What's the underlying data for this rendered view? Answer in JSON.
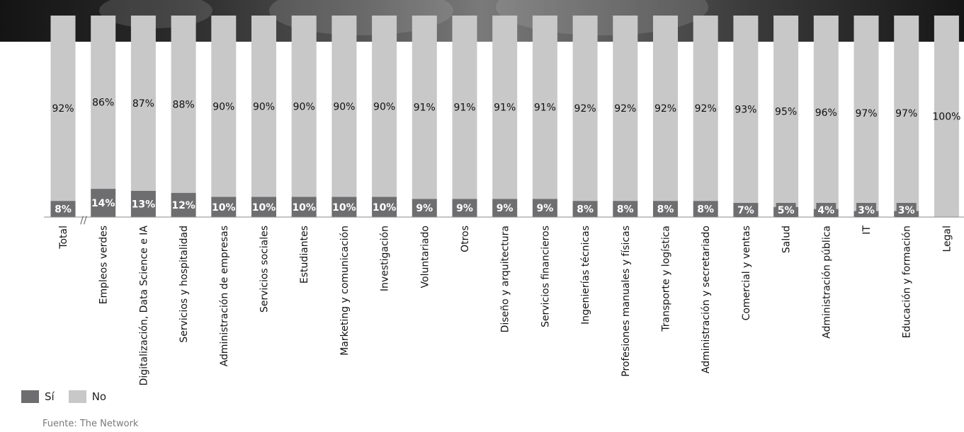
{
  "chart_data": {
    "type": "bar",
    "stacked": true,
    "orientation": "vertical",
    "categories": [
      "Total",
      "Empleos verdes",
      "Digitalización, Data Science  e IA",
      "Servicios y hospitalidad",
      "Administración de empresas",
      "Servicios sociales",
      "Estudiantes",
      "Marketing y comunicación",
      "Investigación",
      "Voluntariado",
      "Otros",
      "Diseño y arquitectura",
      "Servicios financieros",
      "Ingenierías técnicas",
      "Profesiones manuales y físicas",
      "Transporte y logística",
      "Administración y secretariado",
      "Comercial y ventas",
      "Salud",
      "Administración pública",
      "IT",
      "Educación y formación",
      "Legal"
    ],
    "series": [
      {
        "name": "Sí",
        "color": "#6e6e71",
        "values": [
          8,
          14,
          13,
          12,
          10,
          10,
          10,
          10,
          10,
          9,
          9,
          9,
          9,
          8,
          8,
          8,
          8,
          7,
          5,
          4,
          3,
          3,
          0
        ]
      },
      {
        "name": "No",
        "color": "#c8c8c8",
        "values": [
          92,
          86,
          87,
          88,
          90,
          90,
          90,
          90,
          90,
          91,
          91,
          91,
          91,
          92,
          92,
          92,
          92,
          93,
          95,
          96,
          97,
          97,
          100
        ]
      }
    ],
    "data_labels_si": [
      "8%",
      "14%",
      "13%",
      "12%",
      "10%",
      "10%",
      "10%",
      "10%",
      "10%",
      "9%",
      "9%",
      "9%",
      "9%",
      "8%",
      "8%",
      "8%",
      "8%",
      "7%",
      "5%",
      "4%",
      "3%",
      "3%",
      ""
    ],
    "data_labels_no": [
      "92%",
      "86%",
      "87%",
      "88%",
      "90%",
      "90%",
      "90%",
      "90%",
      "90%",
      "91%",
      "91%",
      "91%",
      "91%",
      "92%",
      "92%",
      "92%",
      "92%",
      "93%",
      "95%",
      "96%",
      "97%",
      "97%",
      "100%"
    ],
    "ylim": [
      0,
      100
    ],
    "grid": false,
    "axis_break_after": "Total",
    "axis_break_symbol": "//",
    "legend": {
      "position": "bottom-left",
      "entries": [
        "Sí",
        "No"
      ]
    }
  },
  "source": "Fuente: The Network"
}
